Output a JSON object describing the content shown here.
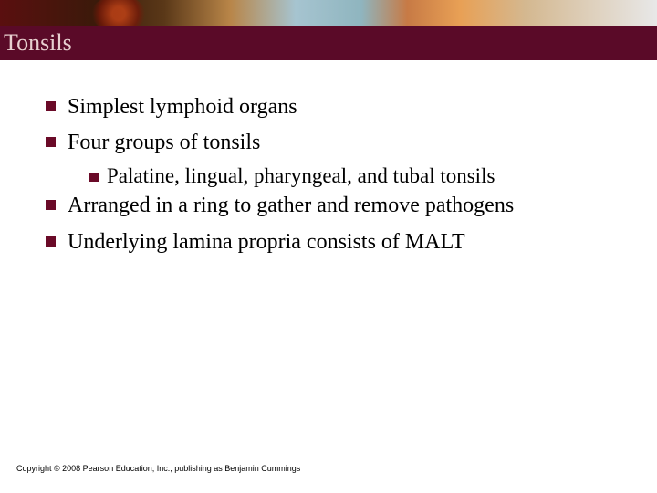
{
  "title": "Tonsils",
  "title_bar_color": "#5a0a28",
  "title_text_color": "#e8d0d0",
  "title_fontsize": 26,
  "bullet_color": "#6a0a28",
  "bullet_fontsize": 24,
  "sub_bullet_fontsize": 23,
  "bullets": [
    {
      "text": "Simplest lymphoid organs"
    },
    {
      "text": "Four groups of tonsils",
      "sub": [
        {
          "text": "Palatine, lingual, pharyngeal, and tubal tonsils"
        }
      ]
    },
    {
      "text": "Arranged in a ring to gather and remove pathogens"
    },
    {
      "text": "Underlying lamina propria consists of MALT"
    }
  ],
  "copyright": "Copyright © 2008 Pearson Education, Inc., publishing as Benjamin Cummings"
}
